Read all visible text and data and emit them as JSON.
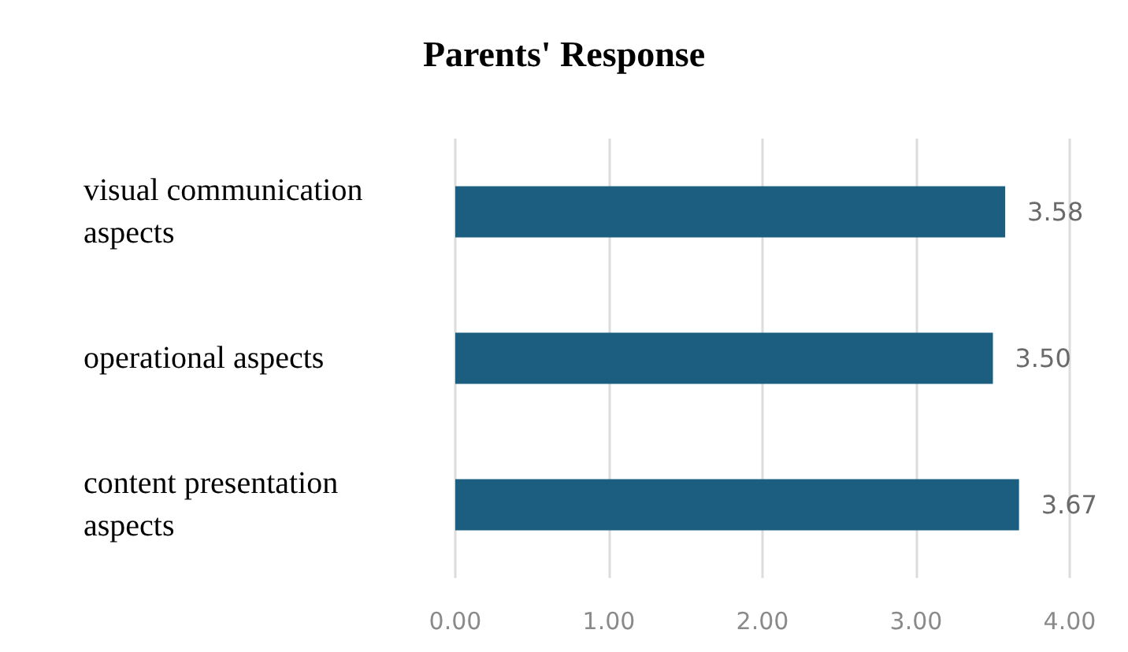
{
  "chart_data": {
    "type": "bar",
    "title": "Parents' Response",
    "orientation": "horizontal",
    "categories": [
      "visual communication aspects",
      "operational aspects",
      "content presentation aspects"
    ],
    "values": [
      3.58,
      3.5,
      3.67
    ],
    "color": "#1b5e80",
    "value_labels": [
      "3.58",
      "3.50",
      "3.67"
    ],
    "xlim": [
      0,
      4
    ],
    "xticks": [
      {
        "value": 0,
        "label": "0.00"
      },
      {
        "value": 1,
        "label": "1.00"
      },
      {
        "value": 2,
        "label": "2.00"
      },
      {
        "value": 3,
        "label": "3.00"
      },
      {
        "value": 4,
        "label": "4.00"
      }
    ],
    "grid": "x"
  }
}
